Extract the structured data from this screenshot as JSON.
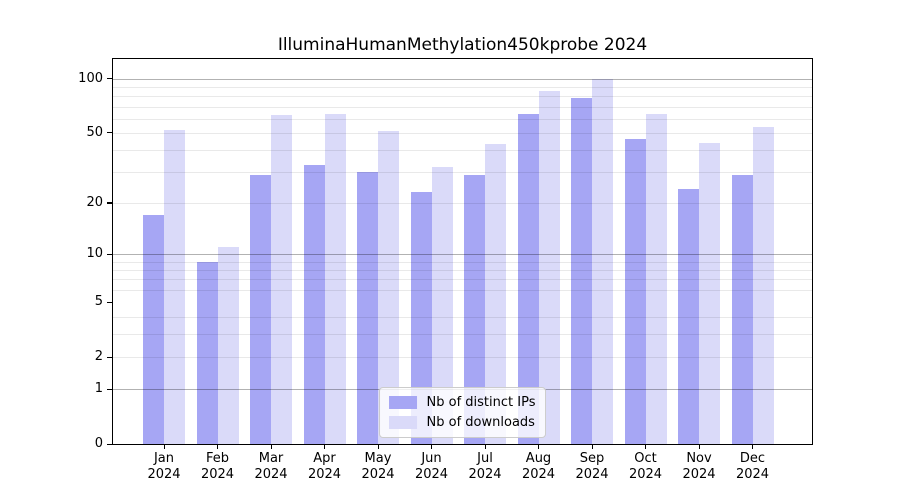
{
  "title": "IlluminaHumanMethylation450kprobe 2024",
  "chart_data": {
    "type": "bar",
    "title": "IlluminaHumanMethylation450kprobe 2024",
    "categories": [
      "Jan",
      "Feb",
      "Mar",
      "Apr",
      "May",
      "Jun",
      "Jul",
      "Aug",
      "Sep",
      "Oct",
      "Nov",
      "Dec"
    ],
    "year_label": "2024",
    "series": [
      {
        "name": "Nb of distinct IPs",
        "color": "#a6a6f4",
        "values": [
          17,
          9,
          29,
          33,
          30,
          23,
          29,
          64,
          78,
          46,
          24,
          29
        ]
      },
      {
        "name": "Nb of downloads",
        "color": "#dadaf9",
        "values": [
          52,
          11,
          63,
          64,
          51,
          32,
          43,
          85,
          100,
          64,
          44,
          54
        ]
      }
    ],
    "yscale": "log1p",
    "yticks": [
      0,
      1,
      2,
      5,
      10,
      20,
      50,
      100
    ],
    "ytick_labels": [
      "0",
      "1",
      "2",
      "5",
      "10",
      "20",
      "50",
      "100"
    ],
    "minor_gridline_values": [
      2,
      3,
      4,
      6,
      7,
      8,
      9,
      20,
      30,
      40,
      50,
      60,
      70,
      80,
      90
    ],
    "major_gridline_values": [
      1,
      10,
      100
    ],
    "ylim": [
      0,
      128
    ],
    "xlabel": "",
    "ylabel": "",
    "grid": "horizontal",
    "legend_position": "lower center"
  },
  "colors": {
    "bar_distinct_ips": "#a6a6f4",
    "bar_downloads": "#dadaf9",
    "grid_minor": "#e8e8e8",
    "grid_major": "#b3b3b3",
    "axis": "#000000",
    "legend_border": "#cccccc",
    "background": "#ffffff"
  }
}
